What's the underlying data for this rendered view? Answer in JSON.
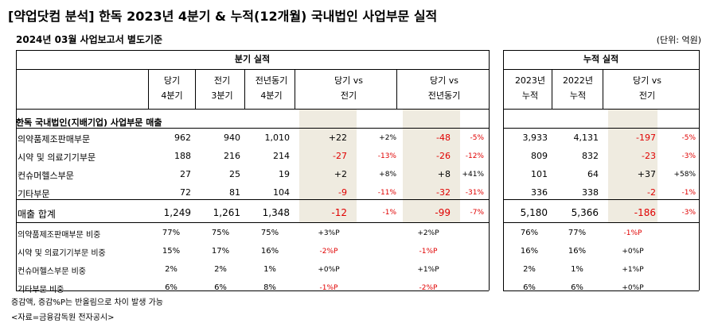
{
  "title": "[약업닷컴 분석] 한독 2023년 4분기 & 누적(12개월) 국내법인 사업부문 실적",
  "subtitle": "2024년 03월 사업보고서 별도기준",
  "unit": "(단위: 억원)",
  "groups": {
    "quarter": "분기 실적",
    "cumulative": "누적 실적"
  },
  "columns": {
    "q4": [
      "당기",
      "4분기"
    ],
    "q3": [
      "전기",
      "3분기"
    ],
    "yoyq": [
      "전년동기",
      "4분기"
    ],
    "vs_prev": [
      "당기 vs",
      "전기"
    ],
    "vs_yoy": [
      "당기 vs",
      "전년동기"
    ],
    "y2023": [
      "2023년",
      "누적"
    ],
    "y2022": [
      "2022년",
      "누적"
    ],
    "vs_cum": [
      "당기 vs",
      "전기"
    ]
  },
  "section_label": "한독 국내법인(지배기업) 사업부문 매출",
  "rows": [
    {
      "label": "의약품제조판매부문",
      "q4": "962",
      "q3": "940",
      "yoy": "1,010",
      "d_prev": "+22",
      "p_prev": "+2%",
      "d_yoy": "-48",
      "p_yoy": "-5%",
      "c23": "3,933",
      "c22": "4,131",
      "d_cum": "-197",
      "p_cum": "-5%"
    },
    {
      "label": "시약 및 의료기기부문",
      "q4": "188",
      "q3": "216",
      "yoy": "214",
      "d_prev": "-27",
      "p_prev": "-13%",
      "d_yoy": "-26",
      "p_yoy": "-12%",
      "c23": "809",
      "c22": "832",
      "d_cum": "-23",
      "p_cum": "-3%"
    },
    {
      "label": "컨슈머헬스부문",
      "q4": "27",
      "q3": "25",
      "yoy": "19",
      "d_prev": "+2",
      "p_prev": "+8%",
      "d_yoy": "+8",
      "p_yoy": "+41%",
      "c23": "101",
      "c22": "64",
      "d_cum": "+37",
      "p_cum": "+58%"
    },
    {
      "label": "기타부문",
      "q4": "72",
      "q3": "81",
      "yoy": "104",
      "d_prev": "-9",
      "p_prev": "-11%",
      "d_yoy": "-32",
      "p_yoy": "-31%",
      "c23": "336",
      "c22": "338",
      "d_cum": "-2",
      "p_cum": "-1%"
    }
  ],
  "total": {
    "label": "매출 합계",
    "q4": "1,249",
    "q3": "1,261",
    "yoy": "1,348",
    "d_prev": "-12",
    "p_prev": "-1%",
    "d_yoy": "-99",
    "p_yoy": "-7%",
    "c23": "5,180",
    "c22": "5,366",
    "d_cum": "-186",
    "p_cum": "-3%"
  },
  "shares": [
    {
      "label": "의약품제조판매부문 비중",
      "q4": "77%",
      "q3": "75%",
      "yoy": "75%",
      "d_prev": "+3%P",
      "d_yoy": "+2%P",
      "c23": "76%",
      "c22": "77%",
      "d_cum": "-1%P"
    },
    {
      "label": "시약 및 의료기기부문 비중",
      "q4": "15%",
      "q3": "17%",
      "yoy": "16%",
      "d_prev": "-2%P",
      "d_yoy": "-1%P",
      "c23": "16%",
      "c22": "16%",
      "d_cum": "+0%P"
    },
    {
      "label": "컨슈머헬스부문 비중",
      "q4": "2%",
      "q3": "2%",
      "yoy": "1%",
      "d_prev": "+0%P",
      "d_yoy": "+1%P",
      "c23": "2%",
      "c22": "1%",
      "d_cum": "+1%P"
    },
    {
      "label": "기타부문 비중",
      "q4": "6%",
      "q3": "6%",
      "yoy": "8%",
      "d_prev": "-1%P",
      "d_yoy": "-2%P",
      "c23": "6%",
      "c22": "6%",
      "d_cum": "+0%P"
    }
  ],
  "notes": [
    "증감액, 증감%P는 반올림으로 차이 발생 가능",
    "<자료=금융감독원 전자공시>"
  ],
  "colors": {
    "highlight": "#efebe0",
    "negative": "#e00000"
  }
}
